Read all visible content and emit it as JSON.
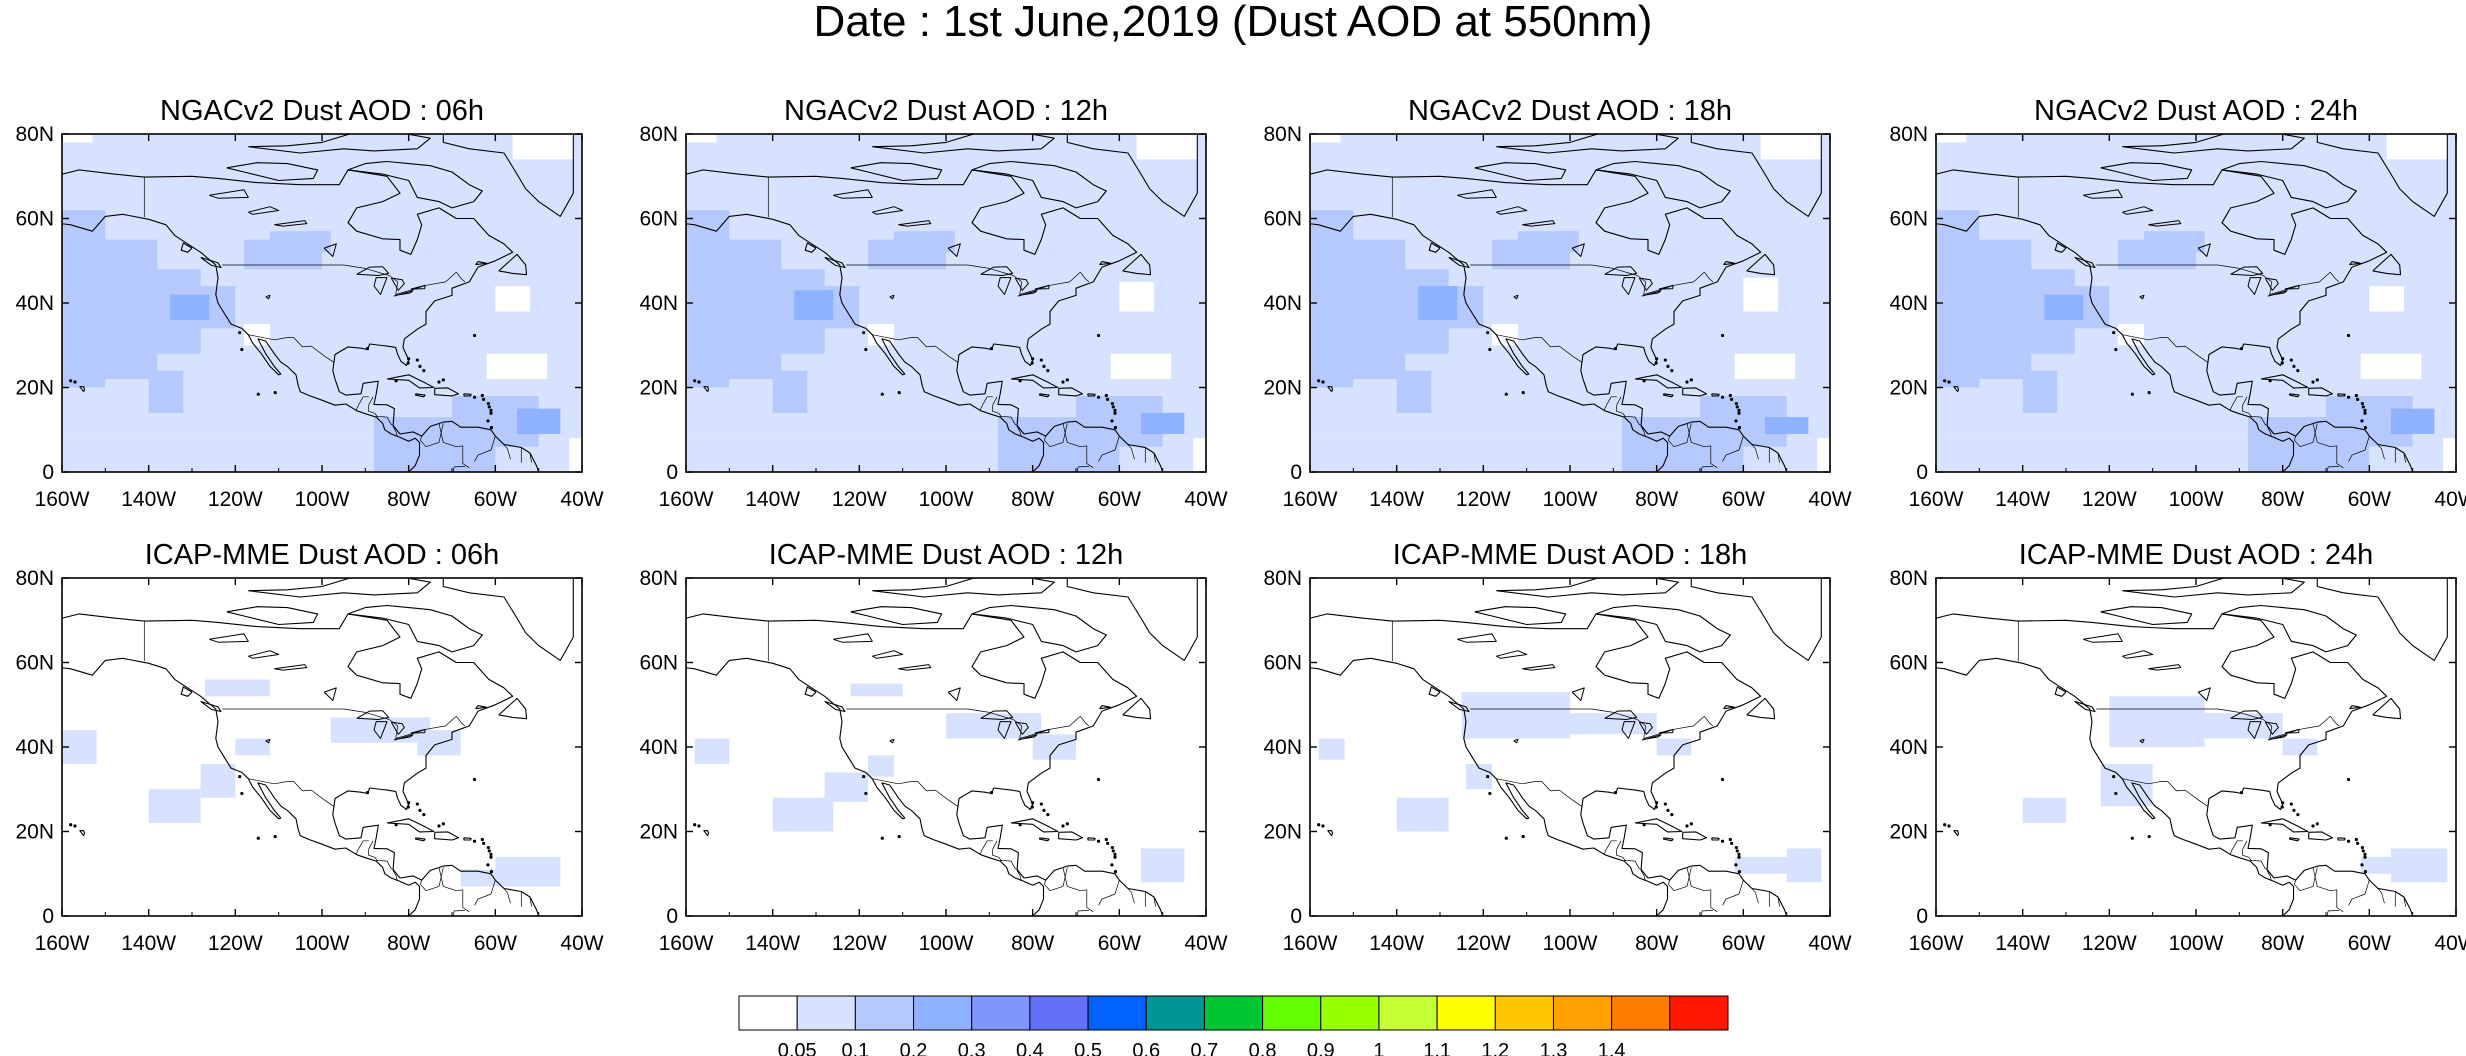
{
  "title": "Date : 1st June,2019 (Dust AOD at 550nm)",
  "lon_labels": [
    "160W",
    "140W",
    "120W",
    "100W",
    "80W",
    "60W",
    "40W"
  ],
  "lat_labels": [
    "80N",
    "60N",
    "40N",
    "20N",
    "0"
  ],
  "map_extent": {
    "lon": [
      -160,
      -40
    ],
    "lat": [
      0,
      80
    ]
  },
  "colors": {
    "ocean_land_base": "#ffffff",
    "coastline": "#000000"
  },
  "panels": [
    {
      "title": "NGACv2 Dust AOD : 06h",
      "model": "NGACv2",
      "lead": "06h"
    },
    {
      "title": "NGACv2 Dust AOD : 12h",
      "model": "NGACv2",
      "lead": "12h"
    },
    {
      "title": "NGACv2 Dust AOD : 18h",
      "model": "NGACv2",
      "lead": "18h"
    },
    {
      "title": "NGACv2 Dust AOD : 24h",
      "model": "NGACv2",
      "lead": "24h"
    },
    {
      "title": "ICAP-MME Dust AOD : 06h",
      "model": "ICAP-MME",
      "lead": "06h"
    },
    {
      "title": "ICAP-MME Dust AOD : 12h",
      "model": "ICAP-MME",
      "lead": "12h"
    },
    {
      "title": "ICAP-MME Dust AOD : 18h",
      "model": "ICAP-MME",
      "lead": "18h"
    },
    {
      "title": "ICAP-MME Dust AOD : 24h",
      "model": "ICAP-MME",
      "lead": "24h"
    }
  ],
  "colorbar": {
    "colors": [
      "#ffffff",
      "#d6e2ff",
      "#b5c9ff",
      "#8eb2ff",
      "#7f96ff",
      "#6370f8",
      "#0063ff",
      "#009696",
      "#00c633",
      "#63ff00",
      "#96ff00",
      "#c6ff33",
      "#ffff00",
      "#ffc600",
      "#ffa000",
      "#ff7c00",
      "#ff1900"
    ],
    "labels": [
      "0.05",
      "0.1",
      "0.2",
      "0.3",
      "0.4",
      "0.5",
      "0.6",
      "0.7",
      "0.8",
      "0.9",
      "1",
      "1.1",
      "1.2",
      "1.3",
      "1.4"
    ]
  }
}
